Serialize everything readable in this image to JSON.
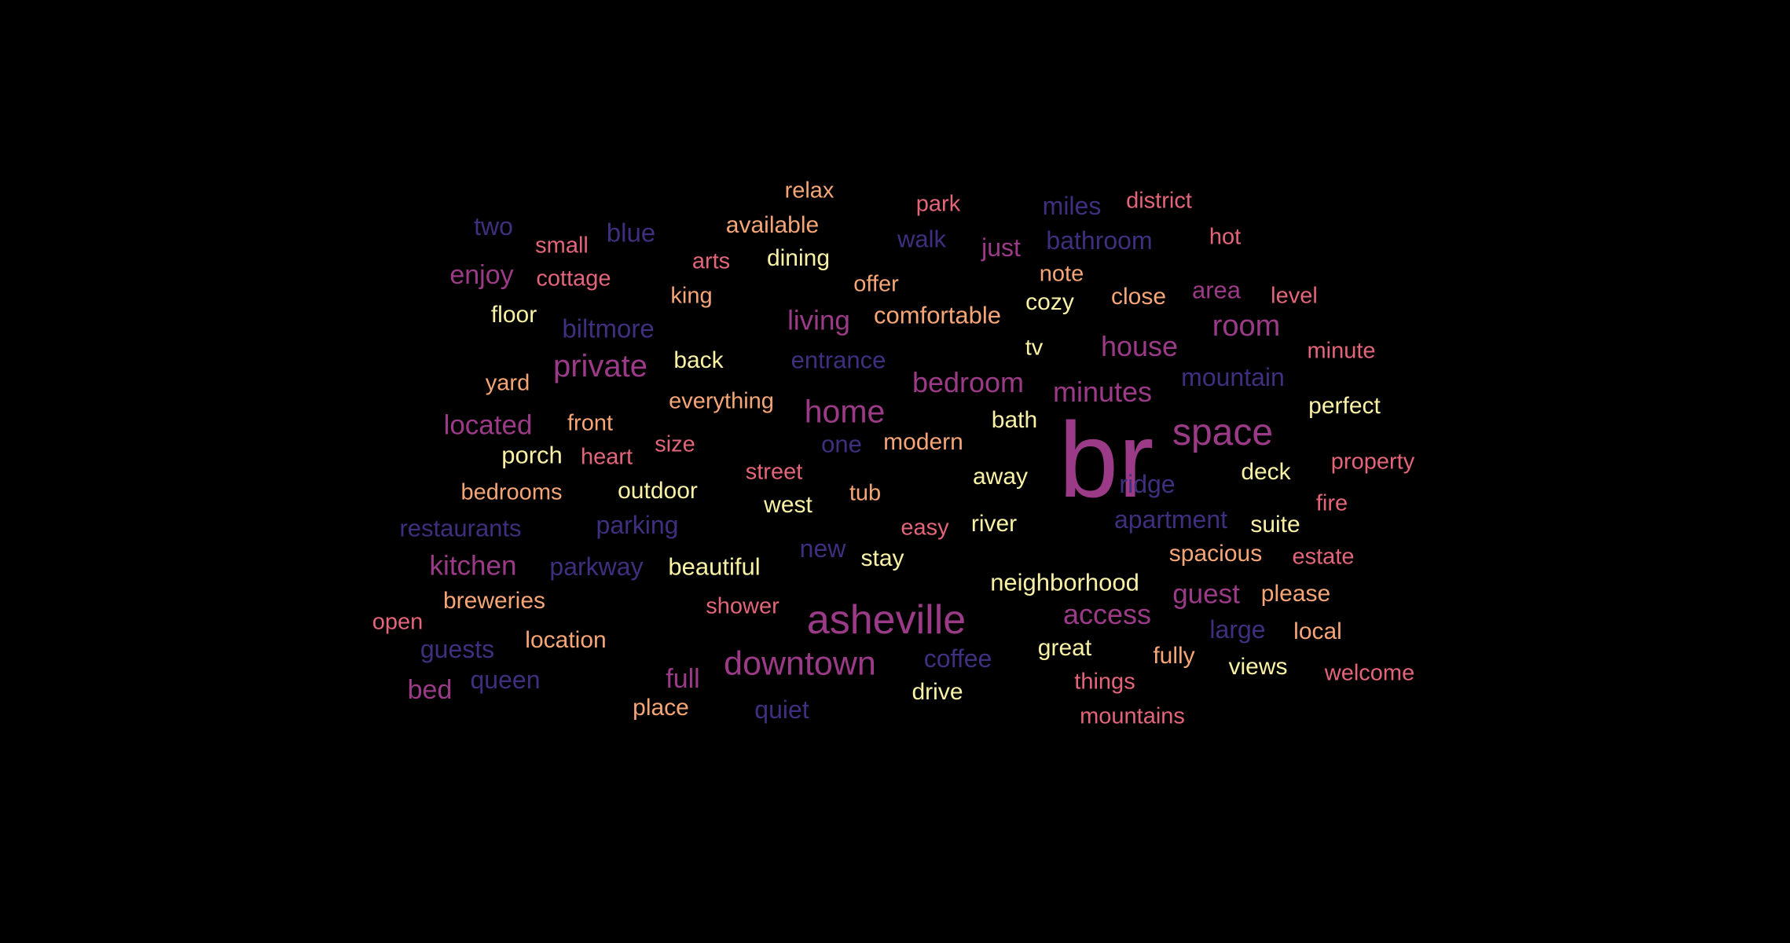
{
  "palette": [
    "#3f2f7e",
    "#9b3a86",
    "#e3657a",
    "#f6a676",
    "#f9f2a6"
  ],
  "words": [
    "br",
    "asheville",
    "downtown",
    "space",
    "home",
    "private",
    "house",
    "room",
    "bedroom",
    "minutes",
    "located",
    "kitchen",
    "access",
    "guest",
    "living",
    "enjoy",
    "bed",
    "just",
    "full",
    "area",
    "relax",
    "park",
    "miles",
    "district",
    "two",
    "blue",
    "available",
    "small",
    "walk",
    "bathroom",
    "hot",
    "arts",
    "dining",
    "cottage",
    "note",
    "king",
    "offer",
    "close",
    "level",
    "floor",
    "biltmore",
    "comfortable",
    "cozy",
    "tv",
    "minute",
    "yard",
    "back",
    "entrance",
    "mountain",
    "everything",
    "perfect",
    "front",
    "bath",
    "size",
    "one",
    "modern",
    "porch",
    "heart",
    "street",
    "away",
    "ridge",
    "deck",
    "property",
    "bedrooms",
    "outdoor",
    "tub",
    "west",
    "fire",
    "restaurants",
    "parking",
    "easy",
    "river",
    "apartment",
    "suite",
    "parkway",
    "beautiful",
    "new",
    "stay",
    "spacious",
    "estate",
    "breweries",
    "shower",
    "neighborhood",
    "please",
    "open",
    "location",
    "large",
    "local",
    "guests",
    "great",
    "fully",
    "coffee",
    "views",
    "welcome",
    "queen",
    "things",
    "drive",
    "place",
    "quiet",
    "mountains"
  ]
}
